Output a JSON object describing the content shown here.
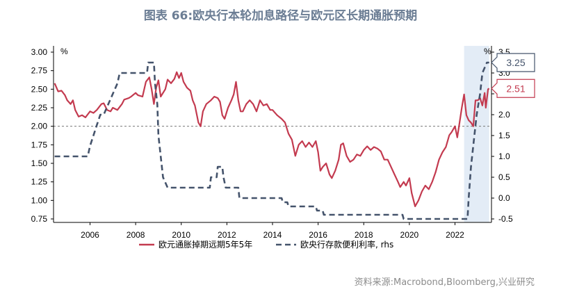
{
  "title": "图表 66:欧央行本轮加息路径与欧元区长期通胀预期",
  "source": "资料来源:Macrobond,Bloomberg,兴业研究",
  "chart_data": {
    "type": "line",
    "left_axis": {
      "unit": "%",
      "ylim": [
        0.75,
        3.0
      ],
      "ticks": [
        "3.00",
        "2.75",
        "2.50",
        "2.25",
        "2.00",
        "1.75",
        "1.50",
        "1.25",
        "1.00",
        "0.75"
      ]
    },
    "right_axis": {
      "unit": "%",
      "ylim": [
        -0.5,
        3.5
      ],
      "ticks": [
        "3.5",
        "3.0",
        "2.5",
        "2.0",
        "1.5",
        "1.0",
        "0.5",
        "0.0",
        "-0.5"
      ]
    },
    "x_axis": {
      "range": [
        2004.4,
        2023.6
      ],
      "ticks": [
        "2006",
        "2008",
        "2010",
        "2012",
        "2014",
        "2016",
        "2018",
        "2020",
        "2022"
      ]
    },
    "reference_line": {
      "axis": "left",
      "value": 2.0,
      "style": "dashed"
    },
    "shaded_region": {
      "x": [
        2022.4,
        2023.5
      ]
    },
    "series": [
      {
        "name": "欧元通胀掉期远期5年5年",
        "axis": "left",
        "color": "#c33a4f",
        "style": "solid",
        "last_value_label": "2.51",
        "points": [
          [
            2004.45,
            2.58
          ],
          [
            2004.6,
            2.47
          ],
          [
            2004.75,
            2.48
          ],
          [
            2004.9,
            2.42
          ],
          [
            2005.0,
            2.35
          ],
          [
            2005.15,
            2.3
          ],
          [
            2005.25,
            2.35
          ],
          [
            2005.35,
            2.22
          ],
          [
            2005.5,
            2.13
          ],
          [
            2005.65,
            2.15
          ],
          [
            2005.8,
            2.12
          ],
          [
            2006.0,
            2.2
          ],
          [
            2006.15,
            2.18
          ],
          [
            2006.3,
            2.22
          ],
          [
            2006.5,
            2.3
          ],
          [
            2006.6,
            2.31
          ],
          [
            2006.75,
            2.22
          ],
          [
            2006.9,
            2.2
          ],
          [
            2007.0,
            2.25
          ],
          [
            2007.2,
            2.22
          ],
          [
            2007.4,
            2.3
          ],
          [
            2007.5,
            2.36
          ],
          [
            2007.7,
            2.38
          ],
          [
            2007.8,
            2.4
          ],
          [
            2008.0,
            2.45
          ],
          [
            2008.1,
            2.42
          ],
          [
            2008.3,
            2.4
          ],
          [
            2008.45,
            2.6
          ],
          [
            2008.6,
            2.66
          ],
          [
            2008.7,
            2.5
          ],
          [
            2008.8,
            2.3
          ],
          [
            2008.9,
            2.52
          ],
          [
            2009.0,
            2.62
          ],
          [
            2009.1,
            2.4
          ],
          [
            2009.3,
            2.5
          ],
          [
            2009.4,
            2.63
          ],
          [
            2009.55,
            2.58
          ],
          [
            2009.7,
            2.64
          ],
          [
            2009.8,
            2.73
          ],
          [
            2009.9,
            2.65
          ],
          [
            2010.0,
            2.72
          ],
          [
            2010.1,
            2.6
          ],
          [
            2010.25,
            2.52
          ],
          [
            2010.4,
            2.48
          ],
          [
            2010.5,
            2.35
          ],
          [
            2010.6,
            2.28
          ],
          [
            2010.75,
            2.05
          ],
          [
            2010.85,
            2.0
          ],
          [
            2010.95,
            2.2
          ],
          [
            2011.1,
            2.3
          ],
          [
            2011.3,
            2.35
          ],
          [
            2011.45,
            2.4
          ],
          [
            2011.6,
            2.38
          ],
          [
            2011.7,
            2.33
          ],
          [
            2011.8,
            2.15
          ],
          [
            2011.9,
            2.1
          ],
          [
            2012.05,
            2.25
          ],
          [
            2012.2,
            2.35
          ],
          [
            2012.3,
            2.43
          ],
          [
            2012.4,
            2.6
          ],
          [
            2012.5,
            2.35
          ],
          [
            2012.6,
            2.2
          ],
          [
            2012.7,
            2.2
          ],
          [
            2012.85,
            2.3
          ],
          [
            2013.0,
            2.35
          ],
          [
            2013.15,
            2.3
          ],
          [
            2013.3,
            2.2
          ],
          [
            2013.45,
            2.35
          ],
          [
            2013.6,
            2.28
          ],
          [
            2013.75,
            2.3
          ],
          [
            2013.9,
            2.22
          ],
          [
            2014.0,
            2.22
          ],
          [
            2014.2,
            2.15
          ],
          [
            2014.4,
            2.1
          ],
          [
            2014.55,
            2.05
          ],
          [
            2014.7,
            1.9
          ],
          [
            2014.85,
            1.82
          ],
          [
            2015.0,
            1.6
          ],
          [
            2015.15,
            1.75
          ],
          [
            2015.3,
            1.8
          ],
          [
            2015.45,
            1.72
          ],
          [
            2015.6,
            1.78
          ],
          [
            2015.75,
            1.72
          ],
          [
            2015.9,
            1.8
          ],
          [
            2016.0,
            1.65
          ],
          [
            2016.1,
            1.4
          ],
          [
            2016.2,
            1.45
          ],
          [
            2016.35,
            1.5
          ],
          [
            2016.5,
            1.35
          ],
          [
            2016.6,
            1.3
          ],
          [
            2016.75,
            1.4
          ],
          [
            2016.9,
            1.55
          ],
          [
            2017.0,
            1.75
          ],
          [
            2017.1,
            1.77
          ],
          [
            2017.25,
            1.6
          ],
          [
            2017.4,
            1.52
          ],
          [
            2017.55,
            1.55
          ],
          [
            2017.7,
            1.62
          ],
          [
            2017.85,
            1.6
          ],
          [
            2018.0,
            1.68
          ],
          [
            2018.15,
            1.73
          ],
          [
            2018.3,
            1.68
          ],
          [
            2018.45,
            1.72
          ],
          [
            2018.6,
            1.7
          ],
          [
            2018.75,
            1.66
          ],
          [
            2018.9,
            1.55
          ],
          [
            2019.05,
            1.55
          ],
          [
            2019.2,
            1.45
          ],
          [
            2019.35,
            1.35
          ],
          [
            2019.5,
            1.25
          ],
          [
            2019.6,
            1.18
          ],
          [
            2019.75,
            1.25
          ],
          [
            2019.85,
            1.2
          ],
          [
            2020.0,
            1.3
          ],
          [
            2020.1,
            1.1
          ],
          [
            2020.25,
            0.92
          ],
          [
            2020.4,
            1.0
          ],
          [
            2020.55,
            1.12
          ],
          [
            2020.7,
            1.2
          ],
          [
            2020.85,
            1.15
          ],
          [
            2021.0,
            1.25
          ],
          [
            2021.15,
            1.38
          ],
          [
            2021.3,
            1.55
          ],
          [
            2021.45,
            1.65
          ],
          [
            2021.6,
            1.72
          ],
          [
            2021.75,
            1.88
          ],
          [
            2021.85,
            1.92
          ],
          [
            2022.0,
            2.0
          ],
          [
            2022.1,
            1.85
          ],
          [
            2022.2,
            2.05
          ],
          [
            2022.3,
            2.25
          ],
          [
            2022.4,
            2.43
          ],
          [
            2022.5,
            2.15
          ],
          [
            2022.6,
            2.08
          ],
          [
            2022.7,
            2.05
          ],
          [
            2022.8,
            2.0
          ],
          [
            2022.9,
            2.35
          ],
          [
            2023.0,
            2.35
          ],
          [
            2023.1,
            2.38
          ],
          [
            2023.2,
            2.28
          ],
          [
            2023.3,
            2.45
          ],
          [
            2023.35,
            2.25
          ],
          [
            2023.45,
            2.5
          ],
          [
            2023.5,
            2.51
          ]
        ]
      },
      {
        "name": "欧央行存款便利利率, rhs",
        "axis": "right",
        "color": "#44536b",
        "style": "dashed",
        "last_value_label": "3.25",
        "points": [
          [
            2004.45,
            1.0
          ],
          [
            2005.9,
            1.0
          ],
          [
            2006.0,
            1.25
          ],
          [
            2006.15,
            1.5
          ],
          [
            2006.3,
            1.75
          ],
          [
            2006.45,
            2.0
          ],
          [
            2006.6,
            2.0
          ],
          [
            2006.8,
            2.25
          ],
          [
            2007.0,
            2.5
          ],
          [
            2007.2,
            2.75
          ],
          [
            2007.3,
            3.0
          ],
          [
            2008.5,
            3.0
          ],
          [
            2008.55,
            3.25
          ],
          [
            2008.8,
            3.25
          ],
          [
            2008.85,
            2.75
          ],
          [
            2008.95,
            2.25
          ],
          [
            2009.0,
            1.5
          ],
          [
            2009.1,
            1.0
          ],
          [
            2009.2,
            0.5
          ],
          [
            2009.4,
            0.25
          ],
          [
            2011.25,
            0.25
          ],
          [
            2011.3,
            0.5
          ],
          [
            2011.55,
            0.5
          ],
          [
            2011.6,
            0.75
          ],
          [
            2011.8,
            0.75
          ],
          [
            2011.85,
            0.5
          ],
          [
            2011.95,
            0.25
          ],
          [
            2012.5,
            0.25
          ],
          [
            2012.55,
            0.0
          ],
          [
            2014.4,
            0.0
          ],
          [
            2014.45,
            -0.1
          ],
          [
            2014.65,
            -0.1
          ],
          [
            2014.7,
            -0.2
          ],
          [
            2015.9,
            -0.2
          ],
          [
            2015.95,
            -0.3
          ],
          [
            2016.2,
            -0.3
          ],
          [
            2016.25,
            -0.4
          ],
          [
            2019.7,
            -0.4
          ],
          [
            2019.75,
            -0.5
          ],
          [
            2022.55,
            -0.5
          ],
          [
            2022.6,
            0.0
          ],
          [
            2022.7,
            0.75
          ],
          [
            2022.85,
            1.5
          ],
          [
            2022.95,
            2.0
          ],
          [
            2023.1,
            2.5
          ],
          [
            2023.2,
            3.0
          ],
          [
            2023.4,
            3.25
          ],
          [
            2023.5,
            3.25
          ]
        ]
      }
    ]
  }
}
